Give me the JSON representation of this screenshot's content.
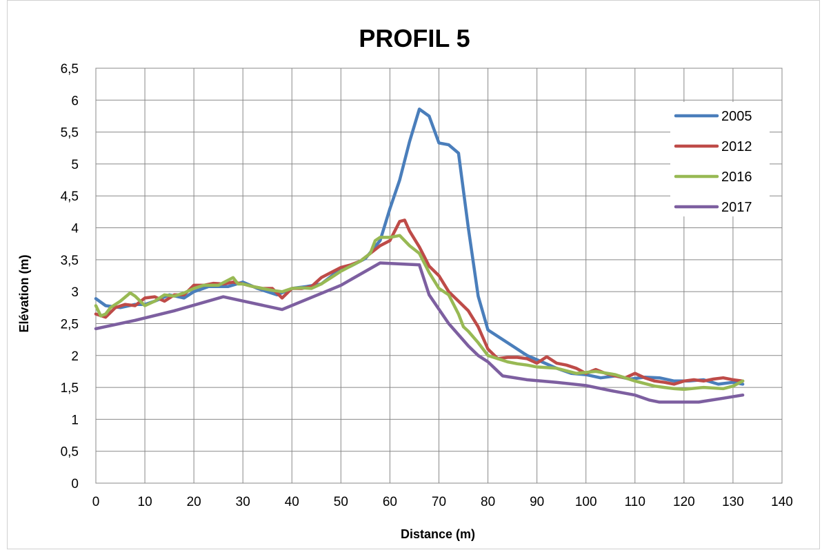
{
  "chart_data": {
    "type": "line",
    "title": "PROFIL 5",
    "xlabel": "Distance (m)",
    "ylabel": "Elévation (m)",
    "xlim": [
      0,
      140
    ],
    "ylim": [
      0,
      6.5
    ],
    "xticks": [
      "0",
      "10",
      "20",
      "30",
      "40",
      "50",
      "60",
      "70",
      "80",
      "90",
      "100",
      "110",
      "120",
      "130",
      "140"
    ],
    "yticks": [
      "0",
      "0,5",
      "1",
      "1,5",
      "2",
      "2,5",
      "3",
      "3,5",
      "4",
      "4,5",
      "5",
      "5,5",
      "6",
      "6,5"
    ],
    "grid": true,
    "legend_position": "top-right",
    "series": [
      {
        "name": "2005",
        "color": "#4a7ebb",
        "x": [
          0,
          2,
          5,
          8,
          10,
          12,
          15,
          18,
          20,
          23,
          27,
          30,
          33,
          37,
          40,
          43,
          46,
          49,
          52,
          55,
          58,
          60,
          62,
          64,
          66,
          68,
          70,
          72,
          74,
          76,
          78,
          80,
          82,
          85,
          88,
          91,
          94,
          97,
          100,
          103,
          106,
          109,
          112,
          115,
          118,
          121,
          124,
          127,
          130,
          132
        ],
        "y": [
          2.89,
          2.78,
          2.75,
          2.8,
          2.8,
          2.85,
          2.95,
          2.9,
          3.0,
          3.08,
          3.08,
          3.15,
          3.05,
          2.95,
          3.05,
          3.08,
          3.12,
          3.3,
          3.4,
          3.52,
          3.8,
          4.3,
          4.75,
          5.35,
          5.86,
          5.75,
          5.33,
          5.3,
          5.17,
          4.0,
          2.93,
          2.4,
          2.3,
          2.15,
          2.0,
          1.9,
          1.8,
          1.72,
          1.7,
          1.65,
          1.68,
          1.63,
          1.66,
          1.65,
          1.6,
          1.6,
          1.62,
          1.55,
          1.58,
          1.55
        ]
      },
      {
        "name": "2012",
        "color": "#be4b48",
        "x": [
          0,
          2,
          4,
          6,
          8,
          10,
          12,
          14,
          16,
          18,
          20,
          22,
          24,
          26,
          28,
          30,
          32,
          34,
          36,
          38,
          40,
          42,
          44,
          46,
          48,
          50,
          52,
          54,
          56,
          58,
          60,
          62,
          63,
          64,
          66,
          68,
          70,
          72,
          74,
          76,
          78,
          80,
          82,
          84,
          86,
          88,
          90,
          92,
          94,
          96,
          98,
          100,
          102,
          104,
          106,
          108,
          110,
          112,
          114,
          116,
          118,
          120,
          122,
          124,
          126,
          128,
          130,
          132
        ],
        "y": [
          2.65,
          2.6,
          2.75,
          2.8,
          2.78,
          2.9,
          2.92,
          2.85,
          2.95,
          2.95,
          3.1,
          3.1,
          3.13,
          3.12,
          3.15,
          3.12,
          3.08,
          3.05,
          3.05,
          2.9,
          3.05,
          3.05,
          3.08,
          3.22,
          3.3,
          3.38,
          3.42,
          3.48,
          3.6,
          3.72,
          3.8,
          4.1,
          4.12,
          3.95,
          3.7,
          3.4,
          3.25,
          3.0,
          2.85,
          2.7,
          2.45,
          2.1,
          1.95,
          1.97,
          1.97,
          1.95,
          1.88,
          1.98,
          1.88,
          1.85,
          1.8,
          1.72,
          1.78,
          1.72,
          1.68,
          1.65,
          1.72,
          1.65,
          1.6,
          1.58,
          1.55,
          1.6,
          1.62,
          1.6,
          1.63,
          1.65,
          1.62,
          1.6
        ]
      },
      {
        "name": "2016",
        "color": "#98b954",
        "x": [
          0,
          1,
          2,
          3,
          5,
          7,
          8,
          10,
          12,
          14,
          16,
          18,
          20,
          22,
          25,
          27,
          28,
          29,
          30,
          32,
          34,
          36,
          38,
          40,
          42,
          44,
          46,
          48,
          50,
          52,
          54,
          56,
          57,
          58,
          60,
          62,
          64,
          66,
          67,
          68,
          70,
          72,
          74,
          75,
          76,
          78,
          80,
          82,
          84,
          86,
          88,
          90,
          94,
          98,
          102,
          106,
          110,
          114,
          116,
          118,
          120,
          124,
          128,
          130,
          132
        ],
        "y": [
          2.78,
          2.62,
          2.65,
          2.75,
          2.85,
          2.98,
          2.93,
          2.78,
          2.85,
          2.95,
          2.93,
          2.98,
          3.05,
          3.1,
          3.1,
          3.18,
          3.22,
          3.12,
          3.12,
          3.08,
          3.05,
          3.02,
          3.0,
          3.05,
          3.06,
          3.05,
          3.12,
          3.22,
          3.32,
          3.4,
          3.48,
          3.6,
          3.8,
          3.85,
          3.85,
          3.88,
          3.72,
          3.6,
          3.45,
          3.3,
          3.05,
          2.95,
          2.65,
          2.45,
          2.38,
          2.2,
          2.0,
          1.95,
          1.9,
          1.87,
          1.85,
          1.82,
          1.8,
          1.72,
          1.75,
          1.7,
          1.6,
          1.52,
          1.5,
          1.48,
          1.47,
          1.5,
          1.48,
          1.52,
          1.6
        ]
      },
      {
        "name": "2017",
        "color": "#7d5fa0",
        "x": [
          0,
          8,
          16,
          26,
          38,
          50,
          58,
          66,
          68,
          72,
          76,
          78,
          80,
          83,
          88,
          94,
          100,
          105,
          110,
          113,
          115,
          120,
          123,
          128,
          132
        ],
        "y": [
          2.42,
          2.55,
          2.7,
          2.92,
          2.72,
          3.1,
          3.45,
          3.42,
          2.95,
          2.5,
          2.15,
          2.0,
          1.9,
          1.68,
          1.62,
          1.58,
          1.53,
          1.45,
          1.38,
          1.3,
          1.27,
          1.27,
          1.27,
          1.33,
          1.38
        ]
      }
    ]
  }
}
